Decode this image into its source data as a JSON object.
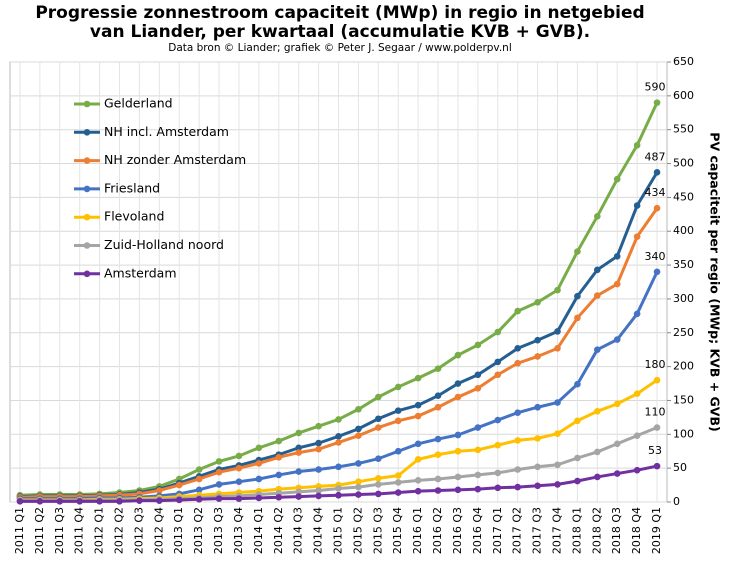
{
  "chart_data": {
    "type": "line",
    "title": [
      "Progressie zonnestroom capaciteit (MWp) in regio in netgebied",
      "van Liander, per kwartaal (accumulatie  KVB + GVB)."
    ],
    "subtitle": "Data bron © Liander; grafiek © Peter J. Segaar / www.polderpv.nl",
    "y_label": "PV capaciteit per regio (MWp;  KVB + GVB)",
    "categories": [
      "2011 Q1",
      "2011 Q2",
      "2011 Q3",
      "2011 Q4",
      "2012 Q1",
      "2012 Q2",
      "2012 Q3",
      "2012 Q4",
      "2013 Q1",
      "2013 Q2",
      "2013 Q3",
      "2013 Q4",
      "2014 Q1",
      "2014 Q2",
      "2014 Q3",
      "2014 Q4",
      "2015 Q1",
      "2015 Q2",
      "2015 Q3",
      "2015 Q4",
      "2016 Q1",
      "2016 Q2",
      "2016 Q3",
      "2016 Q4",
      "2017 Q1",
      "2017 Q2",
      "2017 Q3",
      "2017 Q4",
      "2018 Q1",
      "2018 Q2",
      "2018 Q3",
      "2018 Q4",
      "2019 Q1"
    ],
    "series": [
      {
        "name": "Gelderland",
        "color": "#77ac47",
        "values": [
          10,
          11,
          11,
          11,
          12,
          14,
          17,
          23,
          34,
          48,
          60,
          68,
          80,
          90,
          102,
          112,
          122,
          137,
          155,
          170,
          183,
          197,
          217,
          232,
          251,
          282,
          295,
          313,
          370,
          422,
          477,
          527,
          590
        ]
      },
      {
        "name": "NH incl. Amsterdam",
        "color": "#255e91",
        "values": [
          8,
          9,
          9,
          9,
          10,
          11,
          14,
          19,
          28,
          38,
          48,
          54,
          62,
          70,
          80,
          87,
          97,
          108,
          123,
          135,
          143,
          157,
          175,
          188,
          207,
          227,
          239,
          252,
          304,
          343,
          363,
          438,
          487
        ]
      },
      {
        "name": "NH zonder Amsterdam",
        "color": "#ed7d31",
        "values": [
          7,
          8,
          8,
          8,
          9,
          10,
          12,
          17,
          25,
          34,
          44,
          50,
          57,
          66,
          73,
          78,
          88,
          98,
          110,
          120,
          127,
          140,
          155,
          168,
          188,
          205,
          215,
          227,
          272,
          305,
          322,
          392,
          434
        ]
      },
      {
        "name": "Friesland",
        "color": "#4472c4",
        "values": [
          5,
          5,
          5,
          5,
          6,
          6,
          7,
          9,
          12,
          18,
          26,
          30,
          34,
          40,
          45,
          48,
          52,
          57,
          64,
          75,
          86,
          93,
          99,
          110,
          121,
          132,
          140,
          147,
          174,
          225,
          240,
          278,
          340
        ]
      },
      {
        "name": "Flevoland",
        "color": "#ffc000",
        "values": [
          3,
          3,
          3,
          3,
          4,
          4,
          5,
          6,
          8,
          10,
          12,
          14,
          16,
          19,
          21,
          23,
          25,
          30,
          35,
          39,
          63,
          70,
          75,
          77,
          84,
          91,
          94,
          101,
          120,
          134,
          145,
          160,
          180
        ]
      },
      {
        "name": "Zuid-Holland noord",
        "color": "#a5a5a5",
        "values": [
          2,
          2,
          2,
          2,
          3,
          3,
          3,
          4,
          5,
          6,
          8,
          9,
          11,
          13,
          15,
          17,
          20,
          22,
          26,
          29,
          32,
          34,
          37,
          40,
          43,
          48,
          52,
          55,
          65,
          74,
          86,
          98,
          110
        ]
      },
      {
        "name": "Amsterdam",
        "color": "#7030a0",
        "values": [
          1,
          1,
          1,
          1,
          1,
          1,
          2,
          2,
          3,
          4,
          5,
          5,
          6,
          7,
          8,
          9,
          10,
          11,
          12,
          14,
          16,
          17,
          18,
          19,
          21,
          22,
          24,
          26,
          31,
          37,
          42,
          47,
          53
        ]
      }
    ],
    "ylim": [
      0,
      650
    ],
    "yticks": [
      0,
      50,
      100,
      150,
      200,
      250,
      300,
      350,
      400,
      450,
      500,
      550,
      600,
      650
    ],
    "grid": true,
    "legend": "upper left"
  }
}
